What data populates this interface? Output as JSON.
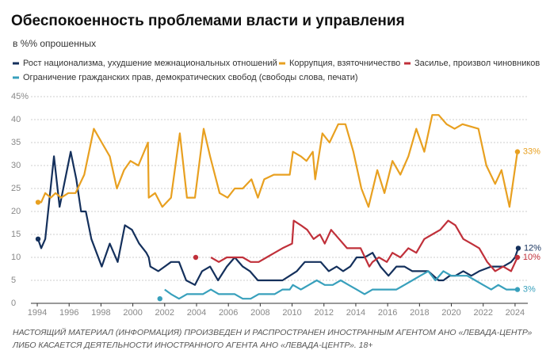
{
  "chart_data": {
    "type": "line",
    "title": "Обеспокоенность проблемами власти и управления",
    "subtitle": "в %% опрошенных",
    "footer": [
      "НАСТОЯЩИЙ МАТЕРИАЛ (ИНФОРМАЦИЯ) ПРОИЗВЕДЕН И РАСПРОСТРАНЕН ИНОСТРАННЫМ АГЕНТОМ АНО «ЛЕВАДА-ЦЕНТР»",
      "ЛИБО КАСАЕТСЯ ДЕЯТЕЛЬНОСТИ ИНОСТРАННОГО АГЕНТА АНО «ЛЕВАДА-ЦЕНТР». 18+"
    ],
    "xlim": [
      1993.8,
      2024.8
    ],
    "xticks": [
      1994,
      1996,
      1998,
      2000,
      2002,
      2004,
      2006,
      2008,
      2010,
      2012,
      2014,
      2016,
      2018,
      2020,
      2022,
      2024
    ],
    "ylim": [
      0,
      45
    ],
    "yticks": [
      0,
      5,
      10,
      15,
      20,
      25,
      30,
      35,
      40,
      {
        "value": 45,
        "label": "45%"
      }
    ],
    "grid": true,
    "series": [
      {
        "name": "Рост национализма, ухудшение межнациональных отношений",
        "color": "#14305c",
        "x": [
          1994.05,
          1994.25,
          1994.5,
          1995.05,
          1995.4,
          1995.75,
          1996.1,
          1996.45,
          1996.75,
          1997.05,
          1997.4,
          1998.05,
          1998.55,
          1999.05,
          1999.5,
          1999.95,
          2000.4,
          2000.85,
          2001.0,
          2001.1,
          2001.6,
          2002.0,
          2002.4,
          2002.9,
          2003.35,
          2003.9,
          2004.35,
          2004.85,
          2005.35,
          2005.9,
          2006.4,
          2006.9,
          2007.35,
          2007.85,
          2008.85,
          2009.4,
          2009.85,
          2010.3,
          2010.8,
          2011.8,
          2012.3,
          2012.8,
          2013.2,
          2013.65,
          2014.05,
          2014.55,
          2015.05,
          2015.55,
          2016.05,
          2016.55,
          2017.05,
          2017.55,
          2018.05,
          2018.55,
          2019.2,
          2019.5,
          2019.9,
          2020.25,
          2020.75,
          2021.25,
          2021.75,
          2022.5,
          2023.25,
          2023.75,
          2024.0,
          2024.2
        ],
        "values": [
          14,
          12,
          14,
          32,
          21,
          27,
          33,
          27,
          20,
          20,
          14,
          8,
          13,
          9,
          17,
          16,
          13,
          11,
          10,
          8,
          7,
          8,
          9,
          9,
          5,
          4,
          7,
          8,
          5,
          8,
          10,
          8,
          7,
          5,
          5,
          5,
          6,
          7,
          9,
          9,
          7,
          8,
          7,
          8,
          10,
          10,
          11,
          8,
          6,
          8,
          8,
          7,
          7,
          7,
          5,
          5,
          6,
          6,
          7,
          6,
          7,
          8,
          8,
          9,
          10,
          12
        ],
        "value_labels": [
          null,
          null,
          null,
          null,
          null,
          null,
          null,
          null,
          null,
          null,
          null,
          null,
          null,
          null,
          null,
          null,
          null,
          null,
          null,
          null,
          null,
          null,
          null,
          null,
          null,
          null,
          null,
          null,
          null,
          null,
          null,
          null,
          null,
          null,
          null,
          null,
          null,
          null,
          null,
          null,
          null,
          null,
          null,
          null,
          null,
          null,
          null,
          null,
          null,
          null,
          null,
          null,
          null,
          null,
          null,
          null,
          null,
          null,
          null,
          null,
          null,
          null,
          null,
          null,
          null,
          "12%"
        ]
      },
      {
        "name": "Коррупция, взяточничество",
        "color": "#e8a020",
        "x": [
          1994.05,
          1994.25,
          1994.5,
          1994.85,
          1995.15,
          1995.5,
          1995.95,
          1996.4,
          1996.95,
          1997.55,
          1998.05,
          1998.55,
          1999.0,
          1999.45,
          1999.85,
          2000.35,
          2000.95,
          2001.0,
          2001.4,
          2001.85,
          2002.4,
          2002.95,
          2003.4,
          2003.9,
          2004.45,
          2004.85,
          2005.45,
          2005.95,
          2006.4,
          2006.9,
          2007.45,
          2007.85,
          2008.25,
          2008.85,
          2009.4,
          2009.85,
          2010.05,
          2010.55,
          2010.9,
          2011.3,
          2011.45,
          2011.9,
          2012.35,
          2012.9,
          2013.35,
          2013.85,
          2014.35,
          2014.8,
          2015.35,
          2015.8,
          2016.3,
          2016.8,
          2017.3,
          2017.8,
          2018.3,
          2018.8,
          2019.2,
          2019.7,
          2020.2,
          2020.7,
          2021.7,
          2022.2,
          2022.75,
          2023.15,
          2023.65,
          2024.15
        ],
        "values": [
          22,
          22,
          24,
          23,
          24,
          23,
          24,
          24,
          28,
          38,
          35,
          32,
          25,
          29,
          31,
          30,
          35,
          23,
          24,
          21,
          23,
          37,
          23,
          23,
          38,
          32,
          24,
          23,
          25,
          25,
          27,
          23,
          27,
          28,
          28,
          28,
          33,
          32,
          31,
          33,
          27,
          37,
          35,
          39,
          39,
          33,
          25,
          21,
          29,
          24,
          31,
          28,
          32,
          38,
          33,
          41,
          41,
          39,
          38,
          39,
          38,
          30,
          26,
          29,
          21,
          33
        ],
        "value_labels": [
          null,
          null,
          null,
          null,
          null,
          null,
          null,
          null,
          null,
          null,
          null,
          null,
          null,
          null,
          null,
          null,
          null,
          null,
          null,
          null,
          null,
          null,
          null,
          null,
          null,
          null,
          null,
          null,
          null,
          null,
          null,
          null,
          null,
          null,
          null,
          null,
          null,
          null,
          null,
          null,
          null,
          null,
          null,
          null,
          null,
          null,
          null,
          null,
          null,
          null,
          null,
          null,
          null,
          null,
          null,
          null,
          null,
          null,
          null,
          null,
          null,
          null,
          null,
          null,
          null,
          "33%"
        ]
      },
      {
        "name": "Засилье, произвол чиновников",
        "color": "#c0303a",
        "x": [
          2003.95,
          2004.4,
          2004.9,
          2005.4,
          2005.9,
          2006.4,
          2006.9,
          2007.4,
          2007.9,
          2008.4,
          2008.9,
          2009.4,
          2010.0,
          2010.1,
          2010.55,
          2010.95,
          2011.35,
          2011.75,
          2012.05,
          2012.45,
          2012.95,
          2013.45,
          2013.95,
          2014.3,
          2014.85,
          2015.05,
          2015.45,
          2015.95,
          2016.3,
          2016.8,
          2017.3,
          2017.8,
          2018.3,
          2018.8,
          2019.3,
          2019.8,
          2020.25,
          2020.75,
          2021.25,
          2021.75,
          2022.25,
          2022.75,
          2023.25,
          2023.75,
          2024.15
        ],
        "values": [
          10,
          null,
          10,
          9,
          10,
          10,
          10,
          9,
          9,
          10,
          11,
          12,
          13,
          18,
          17,
          16,
          14,
          15,
          13,
          16,
          14,
          12,
          12,
          12,
          8,
          9,
          10,
          9,
          11,
          10,
          12,
          11,
          14,
          15,
          16,
          18,
          17,
          14,
          13,
          12,
          9,
          7,
          8,
          7,
          10
        ],
        "value_labels": [
          null,
          null,
          null,
          null,
          null,
          null,
          null,
          null,
          null,
          null,
          null,
          null,
          null,
          null,
          null,
          null,
          null,
          null,
          null,
          null,
          null,
          null,
          null,
          null,
          null,
          null,
          null,
          null,
          null,
          null,
          null,
          null,
          null,
          null,
          null,
          null,
          null,
          null,
          null,
          null,
          null,
          null,
          null,
          null,
          "10%"
        ]
      },
      {
        "name": "Ограничение гражданских прав, демократических свобод (свободы слова, печати)",
        "color": "#38a0bc",
        "x": [
          2001.7,
          2001.8,
          2002.0,
          2002.4,
          2002.9,
          2003.4,
          2003.9,
          2004.4,
          2004.9,
          2005.4,
          2005.9,
          2006.4,
          2006.9,
          2007.4,
          2007.9,
          2008.4,
          2008.9,
          2009.4,
          2009.85,
          2010.05,
          2010.55,
          2011.05,
          2011.55,
          2012.05,
          2012.55,
          2013.05,
          2013.55,
          2014.05,
          2014.55,
          2015.05,
          2015.55,
          2016.05,
          2016.55,
          2017.05,
          2017.55,
          2018.05,
          2018.55,
          2019.0,
          2019.5,
          2020.0,
          2020.5,
          2021.0,
          2021.5,
          2022.0,
          2022.5,
          2022.95,
          2023.45,
          2024.15
        ],
        "values": [
          1,
          null,
          3,
          2,
          1,
          2,
          2,
          2,
          3,
          2,
          2,
          2,
          1,
          1,
          2,
          2,
          2,
          3,
          3,
          4,
          3,
          4,
          5,
          4,
          4,
          5,
          4,
          3,
          2,
          3,
          3,
          3,
          3,
          4,
          5,
          6,
          7,
          5,
          7,
          6,
          6,
          6,
          5,
          4,
          3,
          4,
          3,
          3
        ],
        "value_labels": [
          null,
          null,
          null,
          null,
          null,
          null,
          null,
          null,
          null,
          null,
          null,
          null,
          null,
          null,
          null,
          null,
          null,
          null,
          null,
          null,
          null,
          null,
          null,
          null,
          null,
          null,
          null,
          null,
          null,
          null,
          null,
          null,
          null,
          null,
          null,
          null,
          null,
          null,
          null,
          null,
          null,
          null,
          null,
          null,
          null,
          null,
          null,
          "3%"
        ]
      }
    ]
  }
}
